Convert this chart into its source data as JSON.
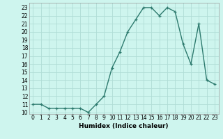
{
  "x": [
    0,
    1,
    2,
    3,
    4,
    5,
    6,
    7,
    8,
    9,
    10,
    11,
    12,
    13,
    14,
    15,
    16,
    17,
    18,
    19,
    20,
    21,
    22,
    23
  ],
  "y": [
    11,
    11,
    10.5,
    10.5,
    10.5,
    10.5,
    10.5,
    10,
    11,
    12,
    15.5,
    17.5,
    20,
    21.5,
    23,
    23,
    22,
    23,
    22.5,
    18.5,
    16,
    21,
    14,
    13.5
  ],
  "line_color": "#2d7a6e",
  "marker": "+",
  "bg_color": "#cef5ee",
  "grid_color": "#b0ddd6",
  "xlabel": "Humidex (Indice chaleur)",
  "ylabel_ticks": [
    10,
    11,
    12,
    13,
    14,
    15,
    16,
    17,
    18,
    19,
    20,
    21,
    22,
    23
  ],
  "xticks": [
    0,
    1,
    2,
    3,
    4,
    5,
    6,
    7,
    8,
    9,
    10,
    11,
    12,
    13,
    14,
    15,
    16,
    17,
    18,
    19,
    20,
    21,
    22,
    23
  ],
  "xlim": [
    -0.5,
    23.5
  ],
  "ylim": [
    9.8,
    23.6
  ],
  "xlabel_fontsize": 6.5,
  "tick_fontsize": 5.5,
  "linewidth": 1.0,
  "markersize": 3.5,
  "markeredgewidth": 0.9
}
